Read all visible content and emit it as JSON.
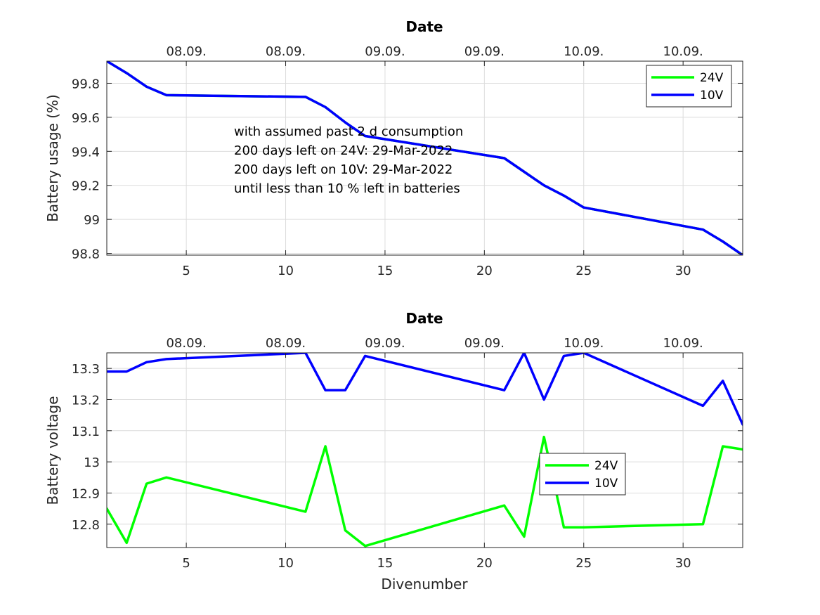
{
  "chart_data": [
    {
      "type": "line",
      "title": "Date",
      "xlabel": "",
      "ylabel": "Battery usage (%)",
      "xlim": [
        1,
        33
      ],
      "ylim": [
        98.79,
        99.93
      ],
      "xticks": [
        5,
        10,
        15,
        20,
        25,
        30
      ],
      "yticks": [
        98.8,
        99,
        99.2,
        99.4,
        99.6,
        99.8
      ],
      "ytick_labels": [
        "98.8",
        "99",
        "99.2",
        "99.4",
        "99.6",
        "99.8"
      ],
      "top_ticks": [
        5,
        10,
        15,
        20,
        25,
        30
      ],
      "top_tick_labels": [
        "08.09.",
        "08.09.",
        "09.09.",
        "09.09.",
        "10.09.",
        "10.09."
      ],
      "grid": true,
      "legend_position": "top-right",
      "legend": [
        "24V",
        "10V"
      ],
      "annotation": [
        "with assumed past 2 d consumption",
        "200 days left on 24V: 29-Mar-2022",
        "200 days left on 10V: 29-Mar-2022",
        "until less than 10 % left in batteries"
      ],
      "series": [
        {
          "name": "24V",
          "color": "#00ff00",
          "x": [
            1,
            2,
            3,
            4,
            11,
            12,
            13,
            14,
            21,
            22,
            23,
            24,
            25,
            31,
            32,
            33
          ],
          "y": [
            99.93,
            99.86,
            99.78,
            99.73,
            99.72,
            99.66,
            99.57,
            99.49,
            99.36,
            99.28,
            99.2,
            99.14,
            99.07,
            98.94,
            98.87,
            98.79
          ]
        },
        {
          "name": "10V",
          "color": "#0000ff",
          "x": [
            1,
            2,
            3,
            4,
            11,
            12,
            13,
            14,
            21,
            22,
            23,
            24,
            25,
            31,
            32,
            33
          ],
          "y": [
            99.93,
            99.86,
            99.78,
            99.73,
            99.72,
            99.66,
            99.57,
            99.49,
            99.36,
            99.28,
            99.2,
            99.14,
            99.07,
            98.94,
            98.87,
            98.79
          ]
        }
      ]
    },
    {
      "type": "line",
      "title": "Date",
      "xlabel": "Divenumber",
      "ylabel": "Battery voltage",
      "xlim": [
        1,
        33
      ],
      "ylim": [
        12.725,
        13.35
      ],
      "xticks": [
        5,
        10,
        15,
        20,
        25,
        30
      ],
      "yticks": [
        12.8,
        12.9,
        13,
        13.1,
        13.2,
        13.3
      ],
      "ytick_labels": [
        "12.8",
        "12.9",
        "13",
        "13.1",
        "13.2",
        "13.3"
      ],
      "top_ticks": [
        5,
        10,
        15,
        20,
        25,
        30
      ],
      "top_tick_labels": [
        "08.09.",
        "08.09.",
        "09.09.",
        "09.09.",
        "10.09.",
        "10.09."
      ],
      "grid": true,
      "legend_position": "center-right",
      "legend": [
        "24V",
        "10V"
      ],
      "series": [
        {
          "name": "24V",
          "color": "#00ff00",
          "x": [
            1,
            2,
            3,
            4,
            11,
            12,
            13,
            14,
            21,
            22,
            23,
            24,
            25,
            31,
            32,
            33
          ],
          "y": [
            12.85,
            12.74,
            12.93,
            12.95,
            12.84,
            13.05,
            12.78,
            12.73,
            12.86,
            12.76,
            13.08,
            12.79,
            12.79,
            12.8,
            13.05,
            13.04
          ]
        },
        {
          "name": "10V",
          "color": "#0000ff",
          "x": [
            1,
            2,
            3,
            4,
            11,
            12,
            13,
            14,
            21,
            22,
            23,
            24,
            25,
            31,
            32,
            33
          ],
          "y": [
            13.29,
            13.29,
            13.32,
            13.33,
            13.35,
            13.23,
            13.23,
            13.34,
            13.23,
            13.35,
            13.2,
            13.34,
            13.35,
            13.18,
            13.26,
            13.12
          ]
        }
      ]
    }
  ]
}
